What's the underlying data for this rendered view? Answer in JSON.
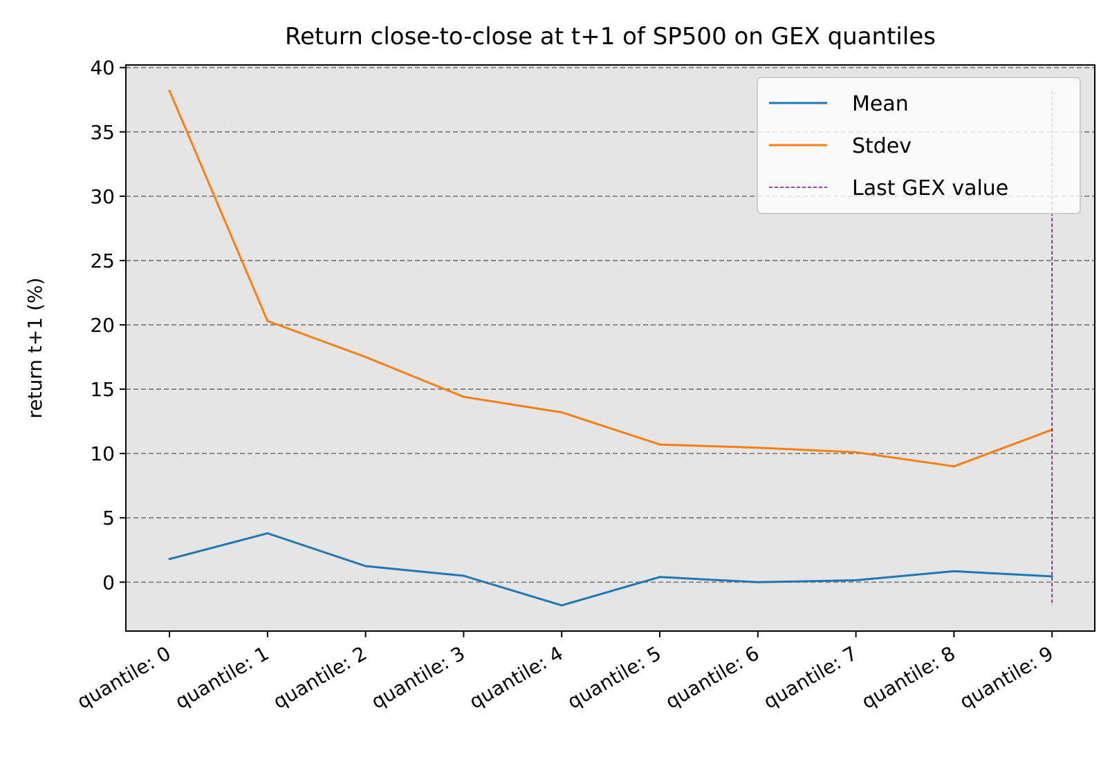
{
  "chart_data": {
    "type": "line",
    "title": "Return close-to-close at t+1 of SP500 on GEX quantiles",
    "xlabel": "",
    "ylabel": "return t+1 (%)",
    "categories": [
      "quantile: 0",
      "quantile: 1",
      "quantile: 2",
      "quantile: 3",
      "quantile: 4",
      "quantile: 5",
      "quantile: 6",
      "quantile: 7",
      "quantile: 8",
      "quantile: 9"
    ],
    "series": [
      {
        "name": "Mean",
        "color": "#1f77b4",
        "values": [
          1.8,
          3.8,
          1.25,
          0.5,
          -1.8,
          0.4,
          0.0,
          0.15,
          0.85,
          0.45
        ]
      },
      {
        "name": "Stdev",
        "color": "#ff7f0e",
        "values": [
          38.2,
          20.3,
          17.5,
          14.4,
          13.2,
          10.7,
          10.45,
          10.1,
          9.0,
          11.85
        ]
      }
    ],
    "vline": {
      "name": "Last GEX value",
      "color": "#800080",
      "category_index": 9,
      "ymin": -1.8,
      "ymax": 38.2
    },
    "ylim": [
      -3.8,
      40.2
    ],
    "yticks": [
      0,
      5,
      10,
      15,
      20,
      25,
      30,
      35,
      40
    ],
    "grid": "y",
    "legend_position": "top-right",
    "plot_background": "#e5e5e5"
  }
}
